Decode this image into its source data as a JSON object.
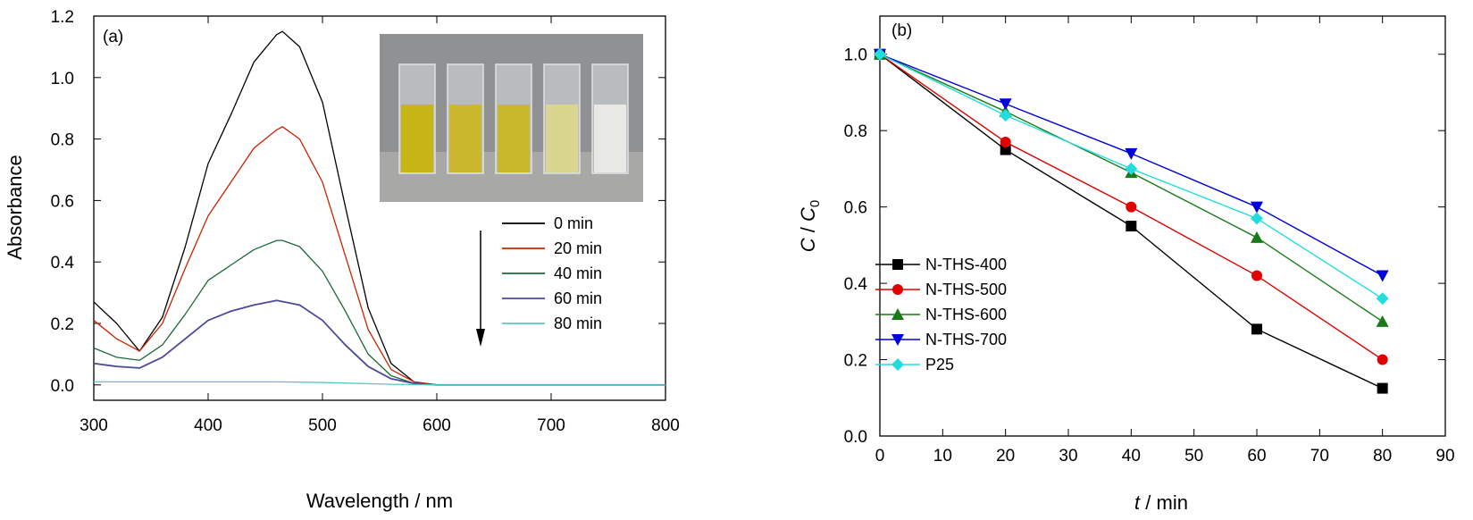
{
  "chart_data": [
    {
      "panel": "(a)",
      "type": "line",
      "xlabel": "Wavelength / nm",
      "ylabel": "Absorbance",
      "xlim": [
        300,
        800
      ],
      "ylim": [
        -0.05,
        1.2
      ],
      "xticks": [
        300,
        400,
        500,
        600,
        700,
        800
      ],
      "yticks": [
        0.0,
        0.2,
        0.4,
        0.6,
        0.8,
        1.0,
        1.2
      ],
      "legend_position": "right",
      "series": [
        {
          "name": "0 min",
          "color": "#000000",
          "x": [
            300,
            320,
            340,
            360,
            380,
            400,
            420,
            440,
            460,
            465,
            480,
            500,
            520,
            540,
            560,
            580,
            600,
            650,
            700,
            750,
            800
          ],
          "y": [
            0.27,
            0.2,
            0.11,
            0.22,
            0.45,
            0.72,
            0.88,
            1.05,
            1.14,
            1.15,
            1.1,
            0.92,
            0.58,
            0.25,
            0.07,
            0.01,
            0.0,
            0.0,
            0.0,
            0.0,
            0.0
          ]
        },
        {
          "name": "20 min",
          "color": "#cc2200",
          "x": [
            300,
            320,
            340,
            360,
            380,
            400,
            420,
            440,
            460,
            465,
            480,
            500,
            520,
            540,
            560,
            580,
            600,
            650,
            700,
            750,
            800
          ],
          "y": [
            0.21,
            0.15,
            0.11,
            0.2,
            0.38,
            0.55,
            0.66,
            0.77,
            0.83,
            0.84,
            0.8,
            0.66,
            0.42,
            0.18,
            0.05,
            0.01,
            0.0,
            0.0,
            0.0,
            0.0,
            0.0
          ]
        },
        {
          "name": "40 min",
          "color": "#1a6a3a",
          "x": [
            300,
            320,
            340,
            360,
            380,
            400,
            420,
            440,
            460,
            465,
            480,
            500,
            520,
            540,
            560,
            580,
            600,
            650,
            700,
            750,
            800
          ],
          "y": [
            0.12,
            0.09,
            0.08,
            0.13,
            0.23,
            0.34,
            0.39,
            0.44,
            0.47,
            0.47,
            0.45,
            0.37,
            0.24,
            0.1,
            0.03,
            0.005,
            0.0,
            0.0,
            0.0,
            0.0,
            0.0
          ]
        },
        {
          "name": "60 min",
          "color": "#4a4a9a",
          "x": [
            300,
            320,
            340,
            360,
            380,
            400,
            420,
            440,
            460,
            480,
            500,
            520,
            540,
            560,
            580,
            600,
            650,
            700,
            750,
            800
          ],
          "y": [
            0.07,
            0.06,
            0.055,
            0.09,
            0.15,
            0.21,
            0.24,
            0.26,
            0.275,
            0.26,
            0.21,
            0.13,
            0.06,
            0.02,
            0.005,
            0.0,
            0.0,
            0.0,
            0.0,
            0.0
          ]
        },
        {
          "name": "80 min",
          "color": "#55c8c8",
          "x": [
            300,
            400,
            460,
            500,
            560,
            600,
            700,
            800
          ],
          "y": [
            0.01,
            0.01,
            0.01,
            0.008,
            0.002,
            0.0,
            0.0,
            0.0
          ]
        }
      ]
    },
    {
      "panel": "(b)",
      "type": "line",
      "xlabel": "t / min",
      "ylabel": "C / C0",
      "xlim": [
        0,
        90
      ],
      "ylim": [
        0.0,
        1.1
      ],
      "xticks": [
        0,
        10,
        20,
        30,
        40,
        50,
        60,
        70,
        80,
        90
      ],
      "yticks": [
        0.0,
        0.2,
        0.4,
        0.6,
        0.8,
        1.0
      ],
      "legend_position": "bottom-left",
      "x": [
        0,
        20,
        40,
        60,
        80
      ],
      "series": [
        {
          "name": "N-THS-400",
          "color": "#000000",
          "marker": "square",
          "values": [
            1.0,
            0.75,
            0.55,
            0.28,
            0.125
          ]
        },
        {
          "name": "N-THS-500",
          "color": "#e00000",
          "marker": "circle",
          "values": [
            1.0,
            0.77,
            0.6,
            0.42,
            0.2
          ]
        },
        {
          "name": "N-THS-600",
          "color": "#1a7a1a",
          "marker": "triangle-up",
          "values": [
            1.0,
            0.85,
            0.69,
            0.52,
            0.3
          ]
        },
        {
          "name": "N-THS-700",
          "color": "#0000dd",
          "marker": "triangle-down",
          "values": [
            1.0,
            0.87,
            0.74,
            0.6,
            0.42
          ]
        },
        {
          "name": "P25",
          "color": "#22dddd",
          "marker": "diamond",
          "values": [
            1.0,
            0.84,
            0.7,
            0.57,
            0.36
          ]
        }
      ]
    }
  ],
  "inset": {
    "description_icon": "cuvette-photo-icon",
    "cuvette_colors": [
      "#c8b414",
      "#cbb82e",
      "#c9b82a",
      "#d9d690",
      "#e8e8e4"
    ]
  }
}
